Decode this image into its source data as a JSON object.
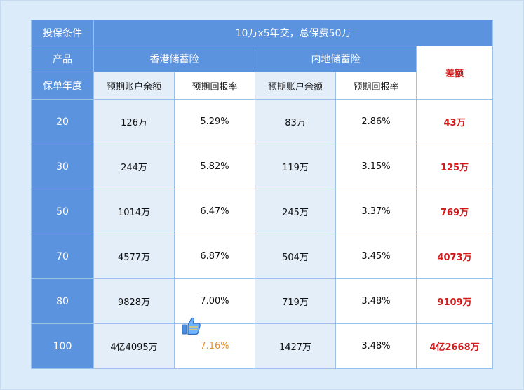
{
  "header": {
    "condition_label": "投保条件",
    "condition_value": "10万x5年交，总保费50万",
    "product_label": "产品",
    "hk_product": "香港储蓄险",
    "cn_product": "内地储蓄险",
    "diff_label": "差额",
    "year_label": "保单年度",
    "hk_balance": "预期账户余额",
    "hk_rate": "预期回报率",
    "cn_balance": "预期账户余额",
    "cn_rate": "预期回报率"
  },
  "rows": [
    {
      "year": "20",
      "hk_balance": "126万",
      "hk_rate": "5.29%",
      "cn_balance": "83万",
      "cn_rate": "2.86%",
      "diff": "43万"
    },
    {
      "year": "30",
      "hk_balance": "244万",
      "hk_rate": "5.82%",
      "cn_balance": "119万",
      "cn_rate": "3.15%",
      "diff": "125万"
    },
    {
      "year": "50",
      "hk_balance": "1014万",
      "hk_rate": "6.47%",
      "cn_balance": "245万",
      "cn_rate": "3.37%",
      "diff": "769万"
    },
    {
      "year": "70",
      "hk_balance": "4577万",
      "hk_rate": "6.87%",
      "cn_balance": "504万",
      "cn_rate": "3.45%",
      "diff": "4073万"
    },
    {
      "year": "80",
      "hk_balance": "9828万",
      "hk_rate": "7.00%",
      "cn_balance": "719万",
      "cn_rate": "3.48%",
      "diff": "9109万"
    },
    {
      "year": "100",
      "hk_balance": "4亿4095万",
      "hk_rate": "7.16%",
      "cn_balance": "1427万",
      "cn_rate": "3.48%",
      "diff": "4亿2668万"
    }
  ],
  "colors": {
    "header_blue": "#5b93de",
    "light_cell": "#e3eef9",
    "diff_red": "#d21b1b",
    "highlight_orange": "#e3902a"
  },
  "icons": {
    "thumb": "thumbs-up-icon"
  }
}
